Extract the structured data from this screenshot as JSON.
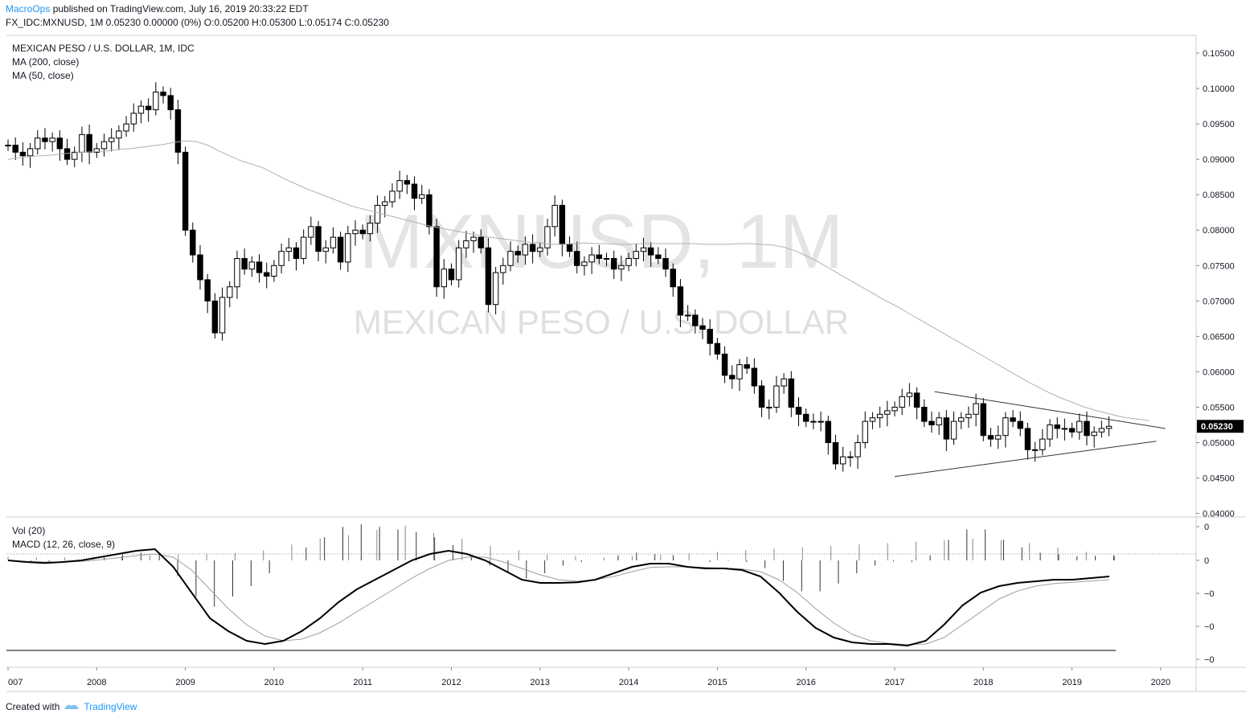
{
  "header": {
    "author": "MacroOps",
    "published": " published on TradingView.com, July 16, 2019 20:33:22 EDT",
    "ohlc_line": "FX_IDC:MXNUSD, 1M 0.05230 0.00000 (0%) O:0.05200 H:0.05300 L:0.05174 C:0.05230"
  },
  "legend": {
    "symbol": "MEXICAN PESO / U.S. DOLLAR, 1M, IDC",
    "ma200": "MA (200, close)",
    "ma50": "MA (50, close)",
    "vol": "Vol (20)",
    "macd": "MACD (12, 26, close, 9)"
  },
  "watermark": {
    "symbol": "MXNUSD, 1M",
    "name": "MEXICAN PESO / U.S. DOLLAR"
  },
  "footer": {
    "created": "Created with",
    "brand": "TradingView"
  },
  "colors": {
    "up": "#ffffff",
    "down": "#000000",
    "ma": "#b0b0b0",
    "macd": "#000000",
    "signal": "#9e9e9e",
    "grid": "#cccccc",
    "price_label_bg": "#000000"
  },
  "chart_data": {
    "type": "candlestick",
    "x_labels": [
      "007",
      "2008",
      "2009",
      "2010",
      "2011",
      "2012",
      "2013",
      "2014",
      "2015",
      "2016",
      "2017",
      "2018",
      "2019",
      "2020"
    ],
    "y_ticks": [
      "0.10500",
      "0.10000",
      "0.09500",
      "0.09000",
      "0.08500",
      "0.08000",
      "0.07500",
      "0.07000",
      "0.06500",
      "0.06000",
      "0.05500",
      "0.05000",
      "0.04500",
      "0.04000"
    ],
    "y_range": [
      0.0395,
      0.1075
    ],
    "last_price": "0.05230",
    "start_year": 2007.0,
    "closes": [
      0.092,
      0.091,
      0.0905,
      0.0915,
      0.093,
      0.0925,
      0.093,
      0.0915,
      0.09,
      0.091,
      0.0935,
      0.091,
      0.0915,
      0.0925,
      0.093,
      0.094,
      0.095,
      0.0965,
      0.0975,
      0.097,
      0.0995,
      0.099,
      0.097,
      0.091,
      0.08,
      0.0765,
      0.073,
      0.07,
      0.0655,
      0.0705,
      0.072,
      0.076,
      0.0745,
      0.0755,
      0.074,
      0.0735,
      0.075,
      0.077,
      0.0775,
      0.076,
      0.079,
      0.0805,
      0.077,
      0.0775,
      0.079,
      0.0755,
      0.0795,
      0.08,
      0.0795,
      0.081,
      0.0835,
      0.084,
      0.0855,
      0.087,
      0.0865,
      0.0845,
      0.085,
      0.0805,
      0.072,
      0.0745,
      0.073,
      0.0775,
      0.0785,
      0.079,
      0.0775,
      0.0695,
      0.074,
      0.075,
      0.077,
      0.0765,
      0.078,
      0.077,
      0.0775,
      0.0805,
      0.0835,
      0.078,
      0.077,
      0.075,
      0.0755,
      0.0765,
      0.076,
      0.076,
      0.0745,
      0.075,
      0.076,
      0.077,
      0.0775,
      0.0765,
      0.076,
      0.0745,
      0.072,
      0.068,
      0.068,
      0.0665,
      0.066,
      0.064,
      0.0625,
      0.0595,
      0.059,
      0.061,
      0.0605,
      0.058,
      0.055,
      0.055,
      0.058,
      0.059,
      0.055,
      0.054,
      0.053,
      0.053,
      0.053,
      0.05,
      0.047,
      0.048,
      0.048,
      0.05,
      0.053,
      0.0535,
      0.054,
      0.0545,
      0.055,
      0.0565,
      0.057,
      0.055,
      0.053,
      0.0525,
      0.0535,
      0.0505,
      0.053,
      0.0535,
      0.054,
      0.0555,
      0.051,
      0.0505,
      0.051,
      0.0535,
      0.053,
      0.052,
      0.049,
      0.049,
      0.0505,
      0.0525,
      0.052,
      0.052,
      0.0515,
      0.053,
      0.051,
      0.0515,
      0.052,
      0.0523
    ],
    "ma50": [
      0.09,
      0.0902,
      0.0904,
      0.0905,
      0.0906,
      0.0908,
      0.0909,
      0.091,
      0.0911,
      0.0912,
      0.0914,
      0.0915,
      0.0917,
      0.0919,
      0.0921,
      0.0924,
      0.0926,
      0.0925,
      0.092,
      0.0912,
      0.0905,
      0.0898,
      0.0893,
      0.0888,
      0.088,
      0.0872,
      0.0865,
      0.0858,
      0.0852,
      0.0846,
      0.084,
      0.0834,
      0.083,
      0.0826,
      0.0822,
      0.0818,
      0.0814,
      0.081,
      0.0806,
      0.0803,
      0.08,
      0.0797,
      0.0794,
      0.0791,
      0.0789,
      0.0787,
      0.0785,
      0.0783,
      0.0782,
      0.078,
      0.078,
      0.0781,
      0.0782,
      0.0781,
      0.0781,
      0.078,
      0.078,
      0.0781,
      0.0781,
      0.0781,
      0.0781,
      0.0781,
      0.0781,
      0.078,
      0.078,
      0.078,
      0.0781,
      0.0781,
      0.078,
      0.0779,
      0.0776,
      0.0771,
      0.0764,
      0.0756,
      0.0747,
      0.0738,
      0.0729,
      0.072,
      0.0711,
      0.0702,
      0.0694,
      0.0685,
      0.0676,
      0.0667,
      0.0658,
      0.0649,
      0.064,
      0.0631,
      0.0622,
      0.0613,
      0.0604,
      0.0595,
      0.0586,
      0.0578,
      0.057,
      0.0563,
      0.0557,
      0.0551,
      0.0546,
      0.0542,
      0.0538,
      0.0535,
      0.0533,
      0.0531
    ],
    "volume": [
      5,
      4,
      4,
      5,
      6,
      7,
      8,
      9,
      10,
      14,
      22,
      30,
      35,
      42,
      48,
      38,
      30,
      20,
      14,
      8,
      6,
      4,
      6,
      8,
      10,
      12,
      14,
      16,
      18,
      20,
      22,
      24,
      26,
      28,
      30,
      28,
      24,
      18,
      12,
      6
    ],
    "macd": [
      0.0,
      -0.05,
      -0.08,
      -0.05,
      0.0,
      0.1,
      0.2,
      0.3,
      0.35,
      -0.2,
      -1.0,
      -1.8,
      -2.2,
      -2.5,
      -2.6,
      -2.5,
      -2.2,
      -1.8,
      -1.3,
      -0.9,
      -0.6,
      -0.3,
      0.0,
      0.2,
      0.3,
      0.2,
      0.0,
      -0.3,
      -0.6,
      -0.7,
      -0.7,
      -0.68,
      -0.6,
      -0.4,
      -0.2,
      -0.1,
      -0.1,
      -0.2,
      -0.25,
      -0.25,
      -0.3,
      -0.5,
      -1.0,
      -1.6,
      -2.1,
      -2.4,
      -2.55,
      -2.6,
      -2.6,
      -2.65,
      -2.5,
      -2.0,
      -1.4,
      -1.0,
      -0.8,
      -0.7,
      -0.65,
      -0.6,
      -0.6,
      -0.55,
      -0.5
    ],
    "signal": [
      0.0,
      -0.03,
      -0.05,
      -0.05,
      -0.03,
      0.02,
      0.08,
      0.15,
      0.2,
      0.1,
      -0.3,
      -0.9,
      -1.5,
      -2.0,
      -2.35,
      -2.5,
      -2.45,
      -2.25,
      -1.95,
      -1.6,
      -1.25,
      -0.9,
      -0.55,
      -0.25,
      -0.0,
      0.1,
      0.1,
      -0.05,
      -0.25,
      -0.45,
      -0.6,
      -0.65,
      -0.6,
      -0.5,
      -0.35,
      -0.22,
      -0.2,
      -0.2,
      -0.22,
      -0.24,
      -0.27,
      -0.35,
      -0.6,
      -1.0,
      -1.5,
      -1.95,
      -2.3,
      -2.5,
      -2.58,
      -2.62,
      -2.6,
      -2.4,
      -2.0,
      -1.6,
      -1.2,
      -0.95,
      -0.8,
      -0.72,
      -0.68,
      -0.64,
      -0.6
    ],
    "macd_ticks": [
      "0",
      "0",
      "−0",
      "−0",
      "−0"
    ],
    "triangle_upper": [
      [
        2017.45,
        0.0572
      ],
      [
        2020.05,
        0.052
      ]
    ],
    "triangle_lower": [
      [
        2017.0,
        0.0452
      ],
      [
        2019.95,
        0.0502
      ]
    ]
  }
}
